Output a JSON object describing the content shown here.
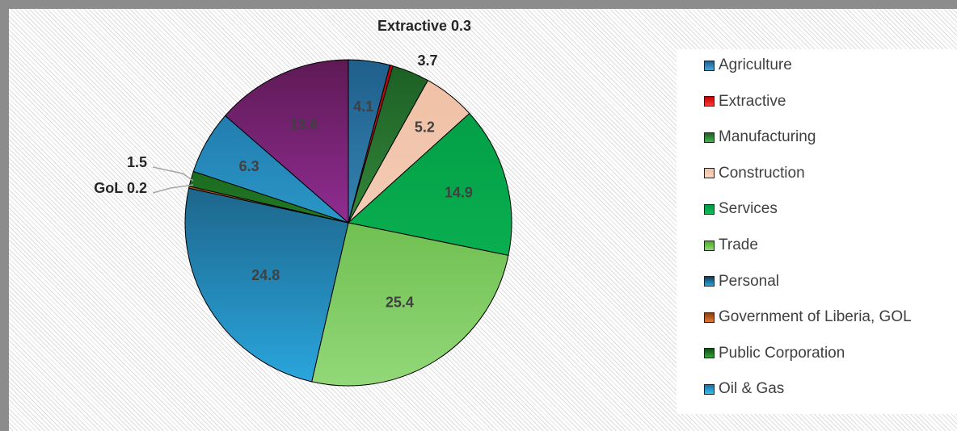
{
  "chart_data": {
    "type": "pie",
    "title": "",
    "legend_position": "right",
    "slices": [
      {
        "name": "Agriculture",
        "value": 4.1,
        "label": "4.1",
        "color": "#2e86c1",
        "color_light": "#4aa6d8",
        "color_dark": "#1f5f8b"
      },
      {
        "name": "Extractive",
        "value": 0.3,
        "label": "Extractive 0.3",
        "color": "#ff0000",
        "color_light": "#ff3b3b",
        "color_dark": "#c00000"
      },
      {
        "name": "Manufacturing",
        "value": 3.7,
        "label": "3.7",
        "color": "#2e8b3a",
        "color_light": "#49b04f",
        "color_dark": "#1c5e24"
      },
      {
        "name": "Construction",
        "value": 5.2,
        "label": "5.2",
        "color": "#f5cbb4",
        "color_light": "#f8d8c6",
        "color_dark": "#efbfa3"
      },
      {
        "name": "Services",
        "value": 14.9,
        "label": "14.9",
        "color": "#00b050",
        "color_light": "#10bd58",
        "color_dark": "#009944"
      },
      {
        "name": "Trade",
        "value": 25.4,
        "label": "25.4",
        "color": "#7ac943",
        "color_light": "#92d878",
        "color_dark": "#4ea82c"
      },
      {
        "name": "Personal",
        "value": 24.8,
        "label": "24.8",
        "color": "#1f6f99",
        "color_light": "#2aa7de",
        "color_dark": "#153c56"
      },
      {
        "name": "Government of Liberia, GOL",
        "value": 0.2,
        "label": "GoL 0.2",
        "color": "#c55a11",
        "color_light": "#e07b39",
        "color_dark": "#8a3d0a"
      },
      {
        "name": "Public Corporation",
        "value": 1.5,
        "label": "1.5",
        "color": "#1e7b1e",
        "color_light": "#37a437",
        "color_dark": "#0f4d14"
      },
      {
        "name": "Oil & Gas",
        "value": 6.3,
        "label": "6.3",
        "color": "#2ab4e8",
        "color_light": "#33c0f0",
        "color_dark": "#1f6fa0"
      },
      {
        "name": "",
        "value": 13.6,
        "label": "13.6",
        "color": "#9b2da6",
        "color_light": "#c23fcf",
        "color_dark": "#5e1a55"
      }
    ]
  }
}
